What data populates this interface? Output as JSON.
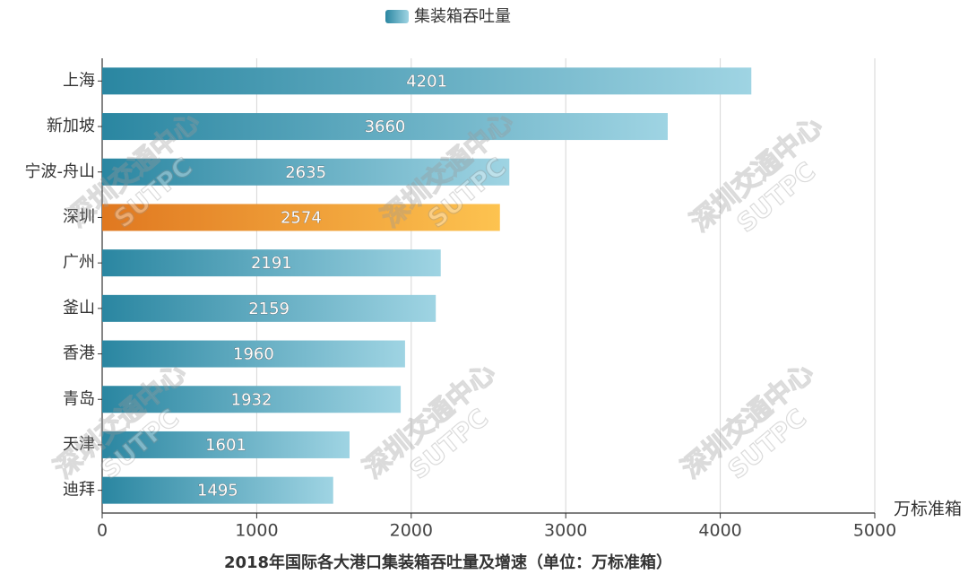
{
  "chart_data": {
    "type": "hbar",
    "title": "2018年国际各大港口集装箱吞吐量及增速（单位：万标准箱）",
    "x_label": "万标准箱",
    "categories": [
      "上海",
      "新加坡",
      "宁波-舟山",
      "深圳",
      "广州",
      "釜山",
      "香港",
      "青岛",
      "天津",
      "迪拜"
    ],
    "series": [
      {
        "name": "集装箱吞吐量",
        "gradient": [
          "#2a86a1",
          "#9fd4e3"
        ],
        "values": [
          4201,
          3660,
          2635,
          2574,
          2191,
          2159,
          1960,
          1932,
          1601,
          1495
        ]
      }
    ],
    "highlighted": "深圳",
    "highlight_gradient": [
      "#e07820",
      "#fdc350"
    ],
    "xlim": [
      0,
      5000
    ],
    "xticks": [
      0,
      1000,
      2000,
      3000,
      4000,
      5000
    ],
    "grid": true,
    "legend": "top",
    "watermark": [
      "深圳交通中心",
      "SUTPC"
    ]
  }
}
